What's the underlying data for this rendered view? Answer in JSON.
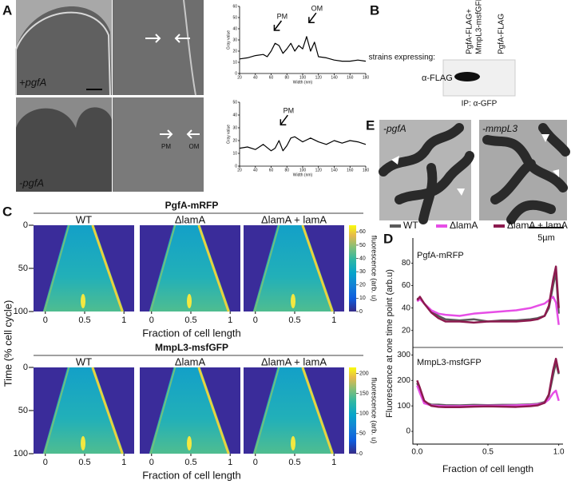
{
  "panel_labels": [
    "A",
    "B",
    "C",
    "D",
    "E"
  ],
  "A": {
    "image_labels": [
      "+pgfA",
      "-pgfA"
    ],
    "micrograph_labels": [
      "PM",
      "OM"
    ],
    "profiles": [
      {
        "annotations": [
          "PM",
          "OM"
        ],
        "y_label": "Gray value",
        "x_label": "Width (nm)",
        "xlim": [
          20,
          180
        ],
        "xticks": [
          20,
          40,
          60,
          80,
          100,
          120,
          140,
          160,
          180
        ],
        "ylim": [
          0,
          60
        ],
        "yticks": [
          0,
          10,
          20,
          30,
          40,
          50,
          60
        ],
        "x": [
          20,
          30,
          40,
          50,
          55,
          60,
          65,
          70,
          75,
          80,
          85,
          90,
          95,
          100,
          105,
          110,
          115,
          120,
          130,
          140,
          150,
          160,
          170,
          180
        ],
        "y": [
          13,
          14,
          16,
          17,
          15,
          20,
          27,
          25,
          18,
          22,
          27,
          20,
          25,
          22,
          33,
          20,
          28,
          15,
          14,
          12,
          11,
          11,
          12,
          11
        ]
      },
      {
        "annotations": [
          "PM"
        ],
        "y_label": "Gray value",
        "x_label": "Width (nm)",
        "xlim": [
          20,
          180
        ],
        "xticks": [
          20,
          40,
          60,
          80,
          100,
          120,
          140,
          160,
          180
        ],
        "ylim": [
          0,
          50
        ],
        "yticks": [
          0,
          10,
          20,
          30,
          40,
          50
        ],
        "x": [
          20,
          30,
          40,
          50,
          60,
          65,
          70,
          75,
          80,
          85,
          90,
          100,
          110,
          120,
          130,
          140,
          150,
          160,
          170,
          180
        ],
        "y": [
          14,
          15,
          13,
          17,
          12,
          14,
          20,
          12,
          16,
          22,
          23,
          19,
          22,
          19,
          17,
          20,
          18,
          20,
          19,
          17
        ]
      }
    ]
  },
  "B": {
    "row_caption": "strains expressing:",
    "columns": [
      [
        "PgfA-FLAG+",
        "MmpL3-msfGFP"
      ],
      [
        "PgfA-FLAG"
      ]
    ],
    "blot_label": "α-FLAG",
    "ip_label": "IP: α-GFP"
  },
  "C": {
    "x_label": "Fraction of cell length",
    "y_label": "Time (% cell cycle)",
    "colorbar_label": "fluorescence (arb. u)",
    "conditions": [
      "WT",
      "ΔlamA",
      "ΔlamA + lamA"
    ],
    "xlim": [
      -0.15,
      1.13
    ],
    "xticks": [
      0,
      0.5,
      1
    ],
    "ylim": [
      0,
      100
    ],
    "yticks": [
      0,
      50,
      100
    ],
    "rows": [
      {
        "title": "PgfA-mRFP",
        "colorbar_lim": [
          0,
          65
        ],
        "colorbar_ticks": [
          0,
          10,
          20,
          30,
          40,
          50,
          60
        ]
      },
      {
        "title": "MmpL3-msfGFP",
        "colorbar_lim": [
          0,
          215
        ],
        "colorbar_ticks": [
          0,
          50,
          100,
          150,
          200
        ]
      }
    ]
  },
  "D": {
    "y_label": "Fluorescence at one time point (arb.u)",
    "x_label": "Fraction of cell length",
    "series": [
      {
        "name": "WT",
        "color": "#5a5a5a"
      },
      {
        "name": "ΔlamA",
        "color": "#e64ee6"
      },
      {
        "name": "ΔlamA + lamA",
        "color": "#8c1a4e"
      }
    ],
    "xlim": [
      -0.03,
      1.03
    ],
    "xticks": [
      {
        "value": 0,
        "label": "0.0"
      },
      0.5,
      {
        "value": 1,
        "label": "1.0"
      }
    ],
    "x": [
      0,
      0.02,
      0.05,
      0.1,
      0.15,
      0.2,
      0.3,
      0.4,
      0.5,
      0.6,
      0.7,
      0.8,
      0.85,
      0.9,
      0.93,
      0.96,
      0.98,
      1.0
    ],
    "subplots": [
      {
        "label": "PgfA-mRFP",
        "ylim": [
          7,
          101
        ],
        "yticks": [
          20,
          40,
          60,
          80
        ],
        "values": [
          [
            48,
            49,
            44,
            37,
            33,
            30,
            29,
            30,
            28,
            29,
            29,
            30,
            31,
            33,
            40,
            60,
            72,
            35
          ],
          [
            46,
            48,
            44,
            38,
            35,
            34,
            33,
            35,
            36,
            37,
            38,
            40,
            42,
            44,
            47,
            50,
            45,
            25
          ],
          [
            47,
            50,
            44,
            36,
            31,
            28,
            28,
            27,
            28,
            28,
            28,
            29,
            30,
            33,
            42,
            65,
            77,
            40
          ]
        ]
      },
      {
        "label": "MmpL3-msfGFP",
        "ylim": [
          -50,
          320
        ],
        "yticks": [
          0,
          100,
          200,
          300
        ],
        "values": [
          [
            190,
            160,
            115,
            105,
            105,
            103,
            102,
            104,
            103,
            104,
            104,
            106,
            108,
            115,
            140,
            220,
            270,
            225
          ],
          [
            180,
            150,
            110,
            102,
            100,
            99,
            99,
            100,
            101,
            101,
            102,
            104,
            106,
            112,
            125,
            150,
            160,
            120
          ],
          [
            200,
            170,
            120,
            100,
            96,
            95,
            95,
            97,
            98,
            97,
            96,
            99,
            102,
            112,
            145,
            240,
            285,
            230
          ]
        ]
      }
    ]
  },
  "E": {
    "image_labels": [
      "-pgfA",
      "-mmpL3"
    ],
    "scale_bar": "5µm"
  }
}
